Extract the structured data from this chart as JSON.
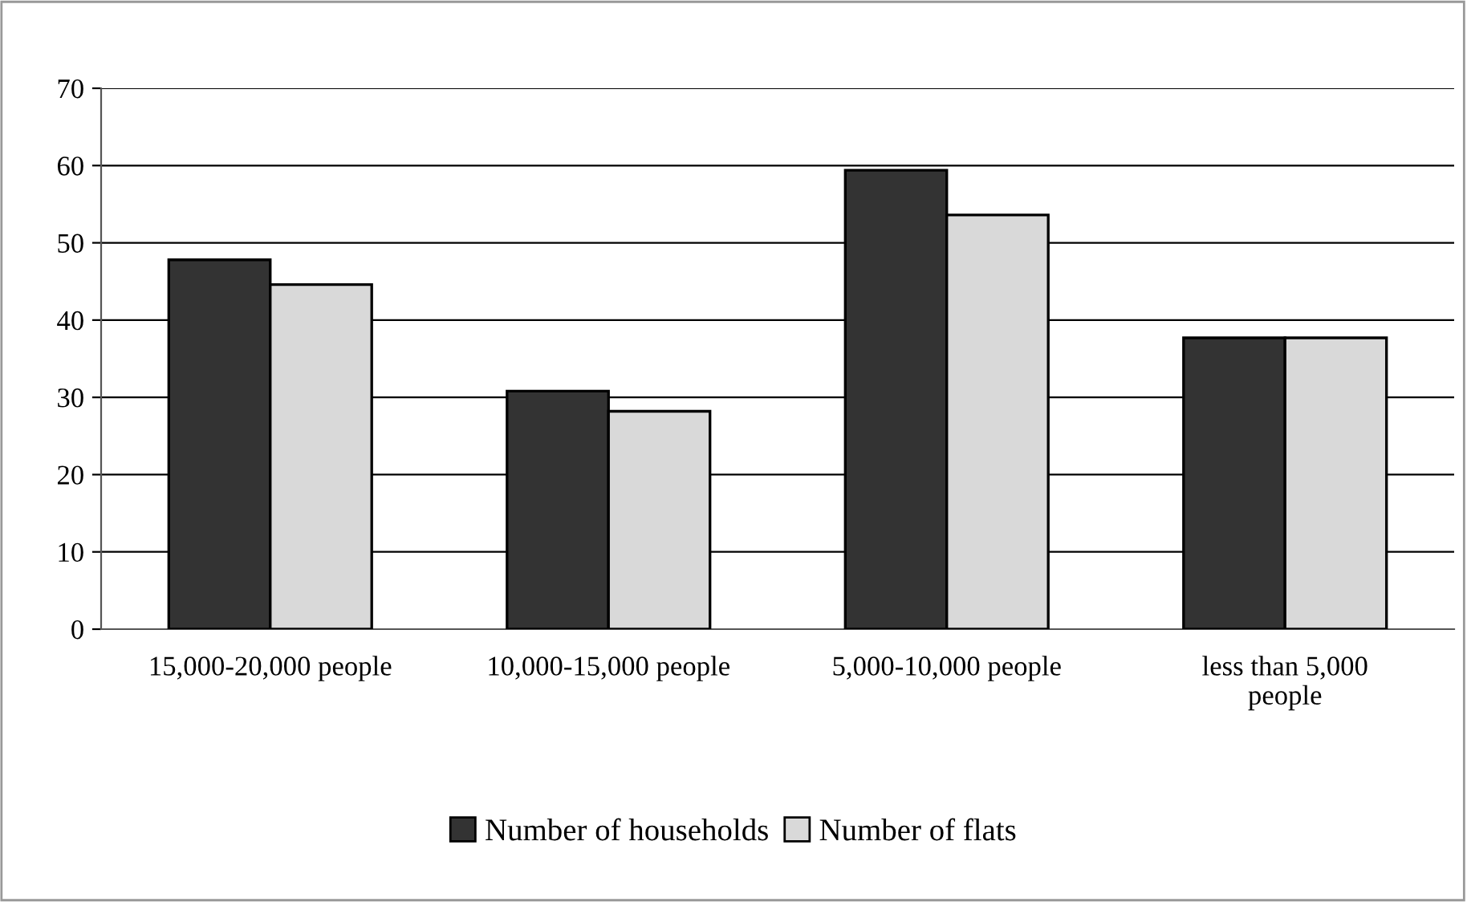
{
  "chart_data": {
    "type": "bar",
    "categories": [
      "15,000-20,000 people",
      "10,000-15,000 people",
      "5,000-10,000 people",
      "less than 5,000 people"
    ],
    "series": [
      {
        "name": "Number of households",
        "color": "#333333",
        "values": [
          47.8,
          30.8,
          59.4,
          37.7
        ]
      },
      {
        "name": "Number of flats",
        "color": "#d9d9d9",
        "values": [
          44.6,
          28.2,
          53.6,
          37.7
        ]
      }
    ],
    "ylim": [
      0,
      70
    ],
    "yticks": [
      0,
      10,
      20,
      30,
      40,
      50,
      60,
      70
    ],
    "grid": "y",
    "legend": "bottom"
  }
}
